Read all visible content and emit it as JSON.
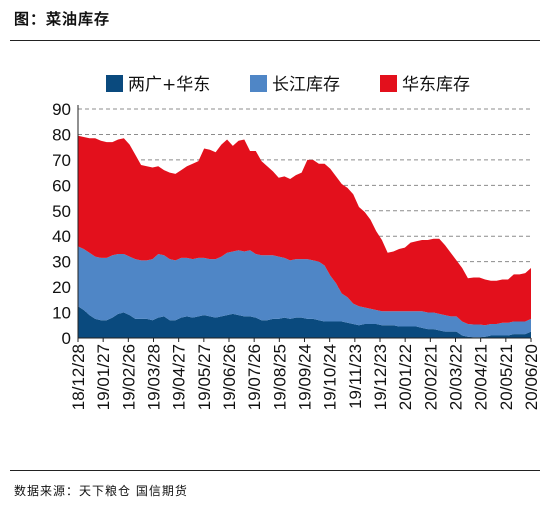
{
  "header": {
    "title": "图：菜油库存"
  },
  "footer": {
    "source": "数据来源：天下粮仓 国信期货"
  },
  "colors": {
    "s1": "#0a4a7e",
    "s2": "#4f86c6",
    "s3": "#e3101c",
    "grid": "#8c8c8c"
  },
  "chart_data": {
    "type": "area",
    "stacked": true,
    "ylim": [
      0,
      90
    ],
    "yticks": [
      0,
      10,
      20,
      30,
      40,
      50,
      60,
      70,
      80,
      90
    ],
    "grid": "horizontal dashed",
    "legend_position": "top",
    "tick_labels": [
      "18/12/28",
      "19/01/27",
      "19/02/26",
      "19/03/28",
      "19/04/27",
      "19/05/27",
      "19/06/26",
      "19/07/26",
      "19/08/25",
      "19/09/24",
      "19/10/24",
      "19/11/23",
      "19/12/23",
      "20/01/22",
      "20/02/21",
      "20/03/22",
      "20/04/21",
      "20/05/21",
      "20/06/20"
    ],
    "x": [
      "2018-12-28",
      "2019-01-04",
      "2019-01-11",
      "2019-01-18",
      "2019-01-25",
      "2019-02-01",
      "2019-02-08",
      "2019-02-15",
      "2019-02-22",
      "2019-03-01",
      "2019-03-08",
      "2019-03-15",
      "2019-03-22",
      "2019-03-29",
      "2019-04-05",
      "2019-04-12",
      "2019-04-19",
      "2019-04-26",
      "2019-05-03",
      "2019-05-10",
      "2019-05-17",
      "2019-05-24",
      "2019-05-31",
      "2019-06-07",
      "2019-06-14",
      "2019-06-21",
      "2019-06-28",
      "2019-07-05",
      "2019-07-12",
      "2019-07-19",
      "2019-07-26",
      "2019-08-02",
      "2019-08-09",
      "2019-08-16",
      "2019-08-23",
      "2019-08-30",
      "2019-09-06",
      "2019-09-13",
      "2019-09-20",
      "2019-09-27",
      "2019-10-04",
      "2019-10-11",
      "2019-10-18",
      "2019-10-25",
      "2019-11-01",
      "2019-11-08",
      "2019-11-15",
      "2019-11-22",
      "2019-11-29",
      "2019-12-06",
      "2019-12-13",
      "2019-12-20",
      "2019-12-27",
      "2020-01-03",
      "2020-01-10",
      "2020-01-17",
      "2020-01-24",
      "2020-01-31",
      "2020-02-07",
      "2020-02-14",
      "2020-02-21",
      "2020-02-28",
      "2020-03-06",
      "2020-03-13",
      "2020-03-20",
      "2020-03-27",
      "2020-04-03",
      "2020-04-10",
      "2020-04-17",
      "2020-04-24",
      "2020-05-01",
      "2020-05-08",
      "2020-05-15",
      "2020-05-22",
      "2020-05-29",
      "2020-06-05",
      "2020-06-12",
      "2020-06-19",
      "2020-06-26",
      "2020-07-03"
    ],
    "series": [
      {
        "name": "两广+华东",
        "values": [
          12.5,
          11,
          9,
          7.5,
          7,
          7,
          8,
          9.5,
          10,
          9,
          7.5,
          7.5,
          7.5,
          7,
          8,
          8.5,
          7,
          7,
          8,
          8.5,
          8,
          8.5,
          9,
          8.5,
          8,
          8.5,
          9,
          9.5,
          9,
          8.5,
          8.5,
          8,
          7,
          7,
          7.5,
          7.5,
          8,
          7.5,
          8,
          8,
          7.5,
          7.5,
          7,
          6.5,
          6.5,
          6.5,
          6.5,
          6,
          5.5,
          5,
          5.5,
          5.5,
          5.5,
          5,
          5,
          5,
          4.5,
          4.5,
          4.5,
          4.5,
          4,
          3.5,
          3.5,
          3,
          2.5,
          2.5,
          2.5,
          1,
          0.5,
          0.3,
          0.3,
          0.5,
          1,
          1,
          1,
          1,
          1.5,
          1.5,
          1.5,
          2.5
        ]
      },
      {
        "name": "长江库存",
        "values": [
          23.5,
          24,
          24.5,
          24.5,
          24.5,
          24.5,
          24.5,
          23.5,
          23,
          23,
          23.5,
          23,
          23,
          24,
          25,
          24,
          24,
          23.5,
          23.5,
          23,
          23,
          23,
          22.5,
          22.5,
          23,
          23.5,
          24.5,
          24.5,
          25.5,
          25.5,
          26,
          25,
          25.5,
          25.5,
          25,
          24.5,
          23.5,
          23,
          23,
          23,
          23.5,
          23,
          23,
          22,
          18,
          15,
          11,
          10,
          8,
          7.5,
          6.5,
          6,
          5.5,
          5.5,
          5.5,
          5.5,
          6,
          6,
          6,
          6,
          6.5,
          6.5,
          6.5,
          6.5,
          6.5,
          6,
          6,
          5.5,
          5,
          5,
          5,
          4.5,
          4.5,
          4.5,
          5,
          5,
          5,
          5,
          5,
          5
        ]
      },
      {
        "name": "华东库存",
        "values": [
          43.5,
          44,
          45,
          46.5,
          46,
          45.5,
          44.5,
          45,
          45.5,
          44,
          41,
          37.5,
          37,
          36,
          34.5,
          33.5,
          34,
          34,
          34.5,
          36,
          37.5,
          38,
          43,
          43,
          42,
          44,
          44.5,
          41.5,
          43,
          44,
          39,
          40.5,
          37,
          35,
          33,
          31,
          32,
          32,
          33,
          34,
          39,
          39.5,
          38.5,
          40,
          42,
          42,
          43,
          43,
          43,
          39,
          37.5,
          35,
          31,
          28,
          23,
          23.5,
          24.5,
          25,
          27,
          27.5,
          28,
          28.5,
          29,
          29.5,
          27.5,
          25,
          22,
          21,
          18,
          18.5,
          18.5,
          18,
          17,
          17,
          17,
          17,
          18.5,
          18.5,
          19,
          20
        ]
      }
    ]
  }
}
